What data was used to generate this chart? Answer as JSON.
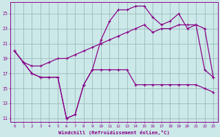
{
  "x_ticks": [
    0,
    1,
    2,
    3,
    4,
    5,
    6,
    7,
    8,
    9,
    10,
    11,
    12,
    13,
    14,
    15,
    16,
    17,
    18,
    19,
    20,
    21,
    22,
    23
  ],
  "xlabel": "Windchill (Refroidissement éolien,°C)",
  "ylim": [
    10.5,
    26.5
  ],
  "yticks": [
    11,
    13,
    15,
    17,
    19,
    21,
    23,
    25
  ],
  "bg_color": "#cce8e8",
  "line_color": "#880088",
  "grid_color": "#99bbbb",
  "line1_x": [
    0,
    1,
    2,
    3,
    4,
    5,
    6,
    7,
    8,
    9,
    10,
    11,
    12,
    13,
    14,
    15,
    16,
    17,
    18,
    19,
    20,
    21,
    22,
    23
  ],
  "line1_y": [
    20.0,
    18.5,
    17.0,
    16.5,
    16.5,
    16.5,
    11.0,
    11.5,
    15.5,
    17.5,
    17.5,
    17.5,
    17.5,
    17.5,
    15.5,
    15.5,
    15.5,
    15.5,
    15.5,
    15.5,
    15.5,
    15.5,
    15.0,
    14.5
  ],
  "line2_x": [
    0,
    1,
    2,
    3,
    4,
    5,
    6,
    7,
    8,
    9,
    10,
    11,
    12,
    13,
    14,
    15,
    16,
    17,
    18,
    19,
    20,
    21,
    22,
    23
  ],
  "line2_y": [
    20.0,
    18.5,
    18.0,
    18.0,
    18.5,
    19.0,
    19.0,
    19.5,
    20.0,
    20.5,
    21.0,
    21.5,
    22.0,
    22.5,
    23.0,
    23.5,
    22.5,
    23.0,
    23.0,
    23.5,
    23.5,
    23.5,
    23.0,
    16.5
  ],
  "line3_x": [
    0,
    1,
    2,
    3,
    4,
    5,
    6,
    7,
    8,
    9,
    10,
    11,
    12,
    13,
    14,
    15,
    16,
    17,
    18,
    19,
    20,
    21,
    22,
    23
  ],
  "line3_y": [
    20.0,
    18.5,
    17.0,
    16.5,
    16.5,
    16.5,
    11.0,
    11.5,
    15.5,
    17.5,
    21.5,
    24.0,
    25.5,
    25.5,
    26.0,
    26.0,
    24.5,
    23.5,
    24.0,
    25.0,
    23.0,
    23.5,
    17.5,
    16.5
  ]
}
